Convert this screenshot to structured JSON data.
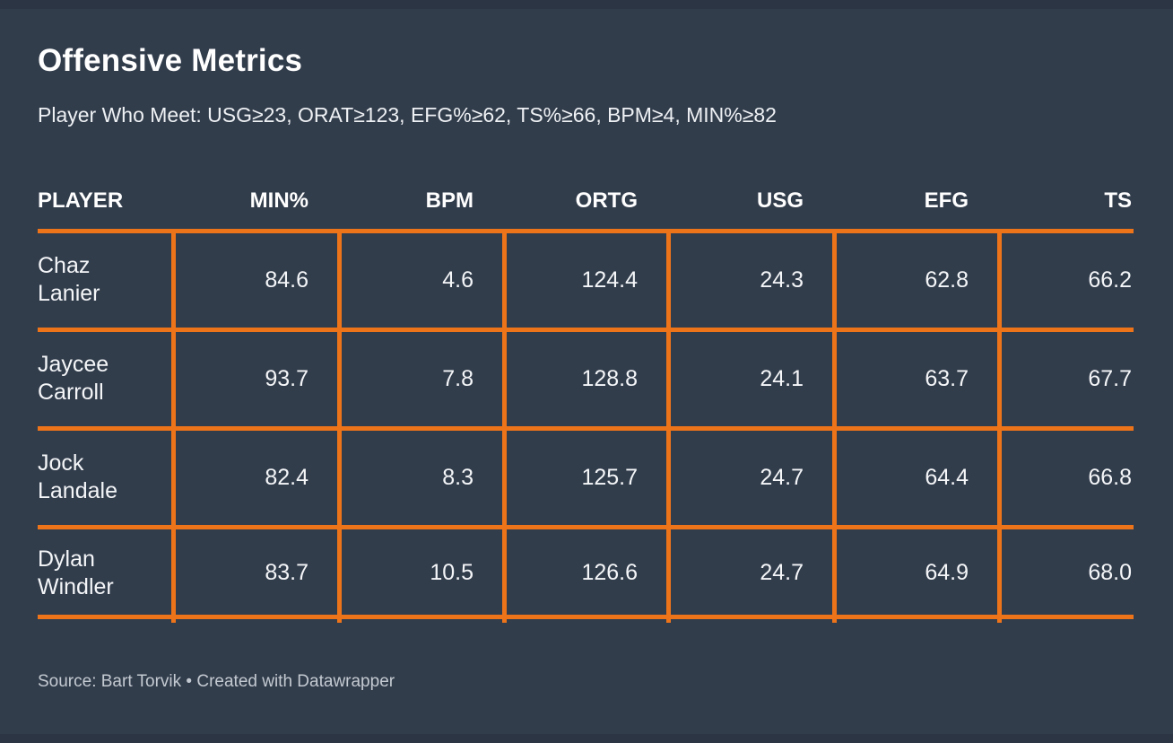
{
  "colors": {
    "background": "#323d4c",
    "edge_strip": "#2b3543",
    "accent_orange": "#ee741a",
    "title_text": "#ffffff",
    "footer_text": "#c4cad1"
  },
  "chart_data": {
    "type": "table",
    "title": "Offensive Metrics",
    "subtitle": "Player Who Meet: USG≥23, ORAT≥123, EFG%≥62, TS%≥66, BPM≥4, MIN%≥82",
    "columns": [
      "PLAYER",
      "MIN%",
      "BPM",
      "ORTG",
      "USG",
      "EFG",
      "TS"
    ],
    "rows": [
      [
        "Chaz Lanier",
        "84.6",
        "4.6",
        "124.4",
        "24.3",
        "62.8",
        "66.2"
      ],
      [
        "Jaycee Carroll",
        "93.7",
        "7.8",
        "128.8",
        "24.1",
        "63.7",
        "67.7"
      ],
      [
        "Jock Landale",
        "82.4",
        "8.3",
        "125.7",
        "24.7",
        "64.4",
        "66.8"
      ],
      [
        "Dylan Windler",
        "83.7",
        "10.5",
        "126.6",
        "24.7",
        "64.9",
        "68.0"
      ]
    ],
    "legend": "none",
    "grid": "orange row and column rules",
    "source": "Source: Bart Torvik • Created with Datawrapper"
  }
}
